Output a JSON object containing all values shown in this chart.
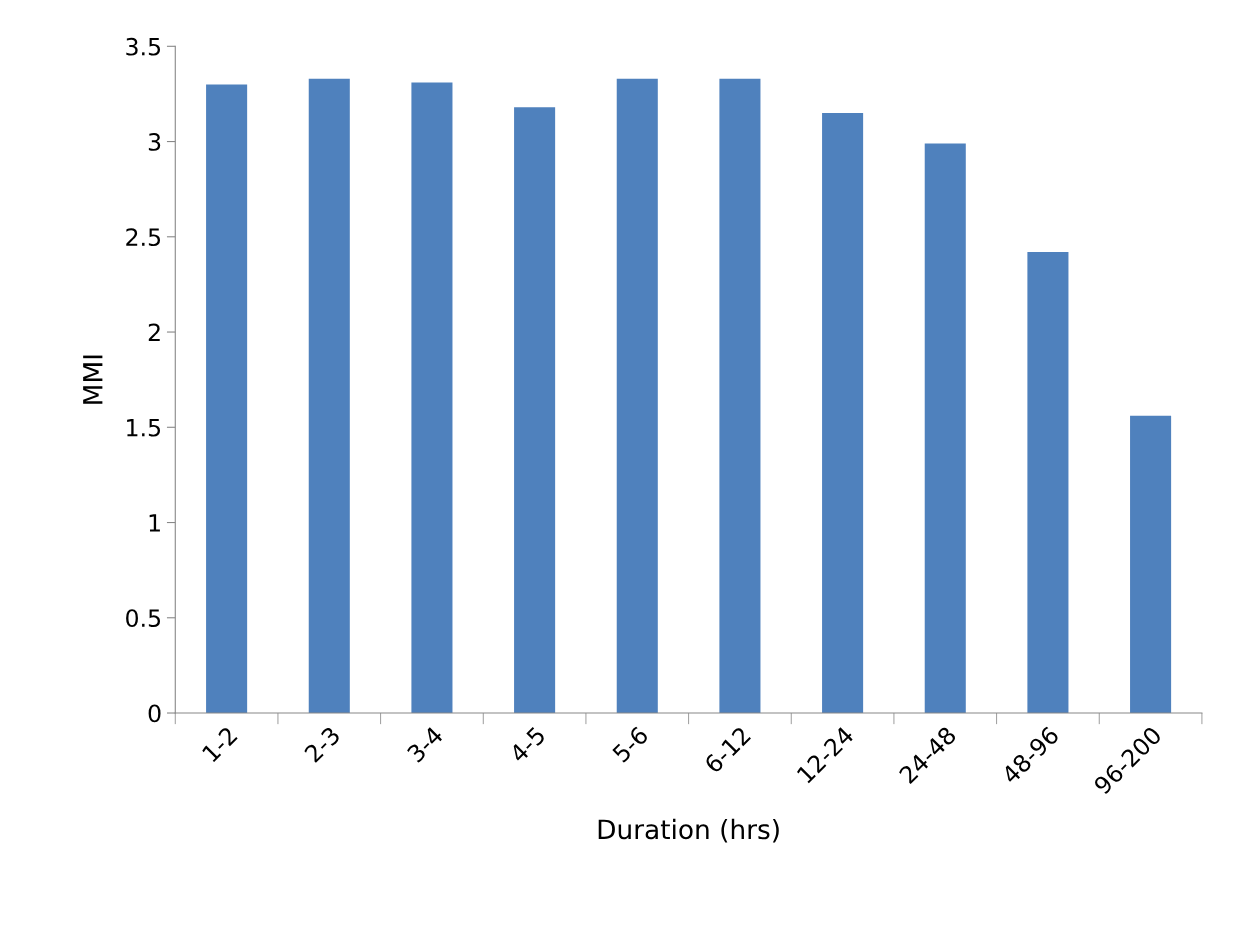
{
  "chart_data": {
    "type": "bar",
    "xlabel": "Duration (hrs)",
    "ylabel": "MMI",
    "categories": [
      "1-2",
      "2-3",
      "3-4",
      "4-5",
      "5-6",
      "6-12",
      "12-24",
      "24-48",
      "48-96",
      "96-200"
    ],
    "values": [
      3.3,
      3.33,
      3.31,
      3.18,
      3.33,
      3.33,
      3.15,
      2.99,
      2.42,
      1.56
    ],
    "color": "#4f81bd",
    "ylim": [
      0,
      3.5
    ],
    "yticks": [
      0,
      0.5,
      1,
      1.5,
      2,
      2.5,
      3,
      3.5
    ],
    "grid": false,
    "legend": false
  }
}
